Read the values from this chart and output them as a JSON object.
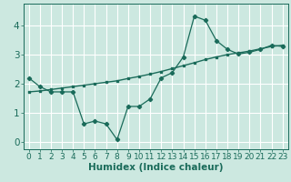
{
  "xlabel": "Humidex (Indice chaleur)",
  "background_color": "#cce8e0",
  "grid_color": "#ffffff",
  "line_color": "#1a6b5a",
  "x_data": [
    0,
    1,
    2,
    3,
    4,
    5,
    6,
    7,
    8,
    9,
    10,
    11,
    12,
    13,
    14,
    15,
    16,
    17,
    18,
    19,
    20,
    21,
    22,
    23
  ],
  "y_main": [
    2.2,
    1.9,
    1.72,
    1.72,
    1.72,
    0.62,
    0.72,
    0.62,
    0.08,
    1.22,
    1.22,
    1.48,
    2.2,
    2.38,
    2.92,
    4.32,
    4.18,
    3.48,
    3.18,
    3.02,
    3.08,
    3.18,
    3.32,
    3.28
  ],
  "y_trend": [
    1.72,
    1.75,
    1.8,
    1.85,
    1.9,
    1.95,
    2.0,
    2.05,
    2.1,
    2.18,
    2.25,
    2.33,
    2.42,
    2.52,
    2.62,
    2.72,
    2.83,
    2.92,
    3.0,
    3.06,
    3.12,
    3.2,
    3.28,
    3.32
  ],
  "ylim": [
    -0.25,
    4.75
  ],
  "xlim": [
    -0.5,
    23.5
  ],
  "yticks": [
    0,
    1,
    2,
    3,
    4
  ],
  "xticks": [
    0,
    1,
    2,
    3,
    4,
    5,
    6,
    7,
    8,
    9,
    10,
    11,
    12,
    13,
    14,
    15,
    16,
    17,
    18,
    19,
    20,
    21,
    22,
    23
  ],
  "tick_fontsize": 6.5,
  "xlabel_fontsize": 7.5
}
